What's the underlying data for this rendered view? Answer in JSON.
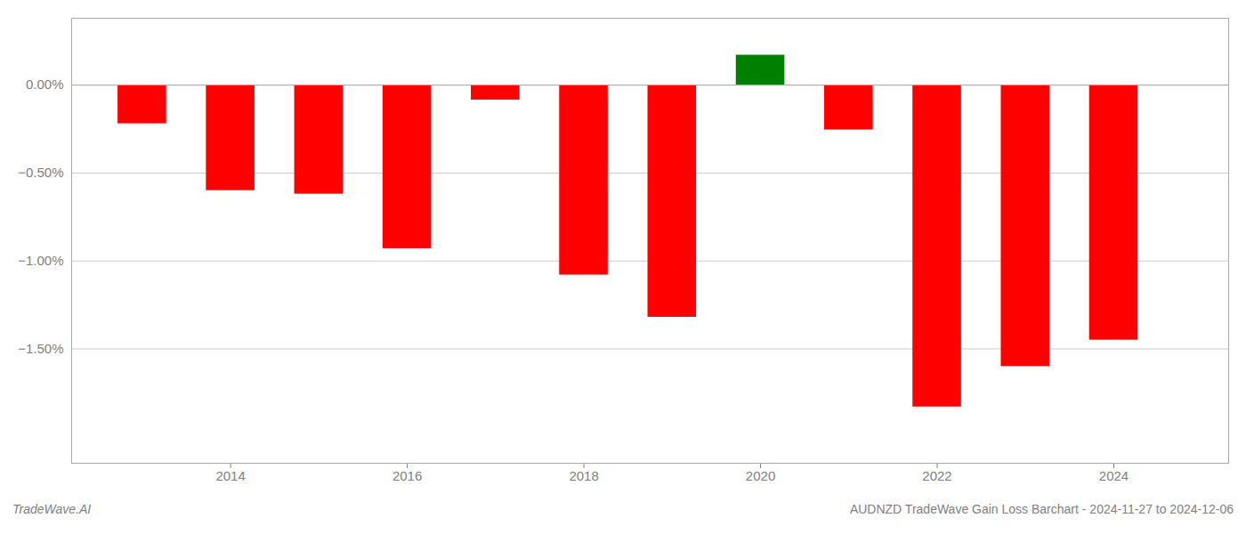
{
  "chart_data": {
    "type": "bar",
    "x": [
      2013,
      2014,
      2015,
      2016,
      2017,
      2018,
      2019,
      2020,
      2021,
      2022,
      2023,
      2024
    ],
    "values": [
      -0.22,
      -0.6,
      -0.62,
      -0.93,
      -0.085,
      -1.08,
      -1.32,
      0.17,
      -0.255,
      -1.83,
      -1.6,
      -1.45
    ],
    "colors": [
      "#ff0000",
      "#ff0000",
      "#ff0000",
      "#ff0000",
      "#ff0000",
      "#ff0000",
      "#ff0000",
      "#008000",
      "#ff0000",
      "#ff0000",
      "#ff0000",
      "#ff0000"
    ],
    "xlim": [
      2012.2,
      2025.3
    ],
    "xticks": [
      2014,
      2016,
      2018,
      2020,
      2022,
      2024
    ],
    "ylim": [
      -2.15,
      0.38
    ],
    "yticks": [
      {
        "value": 0.0,
        "label": "0.00%"
      },
      {
        "value": -0.5,
        "label": "−0.50%"
      },
      {
        "value": -1.0,
        "label": "−1.00%"
      },
      {
        "value": -1.5,
        "label": "−1.50%"
      }
    ],
    "grid": true,
    "annotations": [
      "TradeWave.AI",
      "AUDNZD TradeWave Gain Loss Barchart - 2024-11-27 to 2024-12-06"
    ]
  }
}
